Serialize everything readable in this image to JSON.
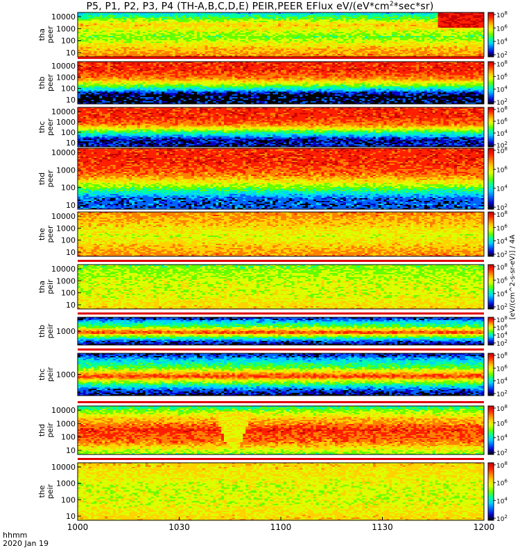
{
  "title_prefix": "P5, P1, P2, P3, P4 (TH-A,B,C,D,E) PEIR,PEER EFlux eV/(eV*cm",
  "title_sup": "2",
  "title_suffix": "*sec*sr)",
  "footer": {
    "line1": "hhmm",
    "line2": "2020 Jan 19"
  },
  "colors": {
    "scale": [
      "#000000",
      "#0a00c8",
      "#0064ff",
      "#00d2ff",
      "#00ffa0",
      "#64ff00",
      "#dcff00",
      "#ffd200",
      "#ff8000",
      "#ff2000",
      "#c80000"
    ]
  },
  "chart_data": {
    "type": "heatmap",
    "title": "P5, P1, P2, P3, P4 (TH-A,B,C,D,E) PEIR,PEER EFlux eV/(eV*cm2*sec*sr)",
    "x": {
      "ticks": [
        "1000",
        "1030",
        "1100",
        "1130",
        "1200"
      ],
      "range": [
        "1000",
        "1200"
      ],
      "label": "hhmm"
    },
    "colorbar": {
      "ticks": [
        "10^2",
        "10^4",
        "10^6",
        "10^8"
      ],
      "label": "[eV/(cm^2-s-sr-eV)] / 4A"
    },
    "panels": [
      {
        "label": "tha peer",
        "label1": "tha",
        "label2": "peer",
        "yticks": [
          "10000",
          "1000",
          "100",
          "10"
        ],
        "bands": [
          [
            0,
            3
          ],
          [
            0.28,
            7
          ],
          [
            0.55,
            5
          ],
          [
            0.78,
            7
          ],
          [
            1,
            8
          ]
        ],
        "feature": "right-edge red enhancement near 1145-1200"
      },
      {
        "label": "thb peer",
        "label1": "thb",
        "label2": "peer",
        "yticks": [
          "10000",
          "1000",
          "100",
          "10"
        ],
        "bands": [
          [
            0,
            9
          ],
          [
            0.22,
            9
          ],
          [
            0.4,
            8
          ],
          [
            0.62,
            4
          ],
          [
            0.8,
            0
          ],
          [
            1,
            0
          ]
        ],
        "gap_top": true
      },
      {
        "label": "thc peer",
        "label1": "thc",
        "label2": "peer",
        "yticks": [
          "10000",
          "1000",
          "100",
          "10"
        ],
        "bands": [
          [
            0,
            9
          ],
          [
            0.25,
            9
          ],
          [
            0.45,
            8
          ],
          [
            0.65,
            4
          ],
          [
            0.82,
            1
          ],
          [
            1,
            1
          ]
        ]
      },
      {
        "label": "thd peer",
        "label1": "thd",
        "label2": "peer",
        "yticks": [
          "10000",
          "1000",
          "100",
          "10"
        ],
        "bands": [
          [
            0,
            9
          ],
          [
            0.25,
            9
          ],
          [
            0.45,
            8
          ],
          [
            0.65,
            5
          ],
          [
            0.82,
            2
          ],
          [
            1,
            2
          ]
        ]
      },
      {
        "label": "the peer",
        "label1": "the",
        "label2": "peer",
        "yticks": [
          "10000",
          "1000",
          "100",
          "10"
        ],
        "bands": [
          [
            0,
            8
          ],
          [
            0.3,
            7
          ],
          [
            0.55,
            6
          ],
          [
            0.75,
            7
          ],
          [
            1,
            8
          ]
        ]
      },
      {
        "label": "tha peir",
        "label1": "tha",
        "label2": "peir",
        "yticks": [
          "10000",
          "1000",
          "100",
          "10"
        ],
        "bands": [
          [
            0,
            5
          ],
          [
            0.4,
            6
          ],
          [
            0.7,
            6
          ],
          [
            1,
            7
          ]
        ],
        "gap_top": true
      },
      {
        "label": "thb peir",
        "label1": "thb",
        "label2": "peir",
        "yticks": [
          "1000"
        ],
        "bands": [
          [
            0,
            1
          ],
          [
            0.15,
            3
          ],
          [
            0.35,
            5
          ],
          [
            0.55,
            9
          ],
          [
            0.65,
            6
          ],
          [
            0.8,
            3
          ],
          [
            1,
            0
          ]
        ],
        "gap_top": true
      },
      {
        "label": "thc peir",
        "label1": "thc",
        "label2": "peir",
        "yticks": [
          "1000"
        ],
        "bands": [
          [
            0,
            1
          ],
          [
            0.15,
            3
          ],
          [
            0.35,
            5
          ],
          [
            0.55,
            9
          ],
          [
            0.65,
            6
          ],
          [
            0.8,
            3
          ],
          [
            1,
            0
          ]
        ],
        "gap_top": true
      },
      {
        "label": "thd peir",
        "label1": "thd",
        "label2": "peir",
        "yticks": [
          "10000",
          "1000",
          "100",
          "10"
        ],
        "bands": [
          [
            0,
            4
          ],
          [
            0.25,
            7
          ],
          [
            0.5,
            9
          ],
          [
            0.75,
            8
          ],
          [
            1,
            5
          ]
        ],
        "gap_top": true,
        "feature": "funnel-shaped dip near 1042"
      },
      {
        "label": "the peir",
        "label1": "the",
        "label2": "peir",
        "yticks": [
          "10000",
          "1000",
          "100",
          "10"
        ],
        "bands": [
          [
            0,
            7
          ],
          [
            0.4,
            6
          ],
          [
            0.7,
            6
          ],
          [
            1,
            7
          ]
        ],
        "gap_top": true
      }
    ]
  }
}
